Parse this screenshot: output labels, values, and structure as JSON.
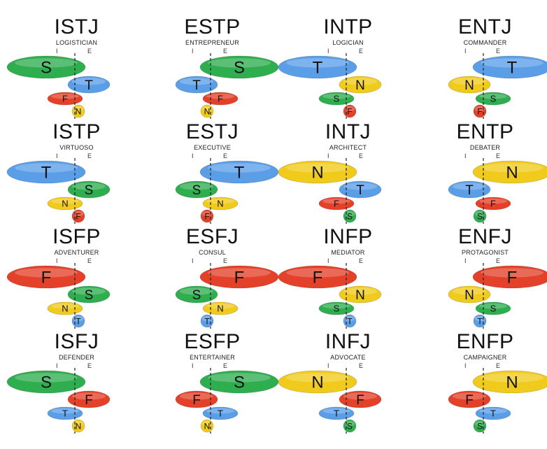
{
  "colors": {
    "T": "#5b9ee8",
    "S": "#2fae4f",
    "N": "#f1cb1b",
    "F": "#e4412a"
  },
  "axis_labels": {
    "introvert": "I",
    "extravert": "E"
  },
  "types": [
    {
      "code": "ISTJ",
      "name": "LOGISTICIAN",
      "stack": [
        "S",
        "T",
        "F",
        "N"
      ],
      "dominant_side": "I"
    },
    {
      "code": "ESTP",
      "name": "ENTREPRENEUR",
      "stack": [
        "S",
        "T",
        "F",
        "N"
      ],
      "dominant_side": "E"
    },
    {
      "code": "INTP",
      "name": "LOGICIAN",
      "stack": [
        "T",
        "N",
        "S",
        "F"
      ],
      "dominant_side": "I"
    },
    {
      "code": "ENTJ",
      "name": "COMMANDER",
      "stack": [
        "T",
        "N",
        "S",
        "F"
      ],
      "dominant_side": "E"
    },
    {
      "code": "ISTP",
      "name": "VIRTUOSO",
      "stack": [
        "T",
        "S",
        "N",
        "F"
      ],
      "dominant_side": "I"
    },
    {
      "code": "ESTJ",
      "name": "EXECUTIVE",
      "stack": [
        "T",
        "S",
        "N",
        "F"
      ],
      "dominant_side": "E"
    },
    {
      "code": "INTJ",
      "name": "ARCHITECT",
      "stack": [
        "N",
        "T",
        "F",
        "S"
      ],
      "dominant_side": "I"
    },
    {
      "code": "ENTP",
      "name": "DEBATER",
      "stack": [
        "N",
        "T",
        "F",
        "S"
      ],
      "dominant_side": "E"
    },
    {
      "code": "ISFP",
      "name": "ADVENTURER",
      "stack": [
        "F",
        "S",
        "N",
        "T"
      ],
      "dominant_side": "I"
    },
    {
      "code": "ESFJ",
      "name": "CONSUL",
      "stack": [
        "F",
        "S",
        "N",
        "T"
      ],
      "dominant_side": "E"
    },
    {
      "code": "INFP",
      "name": "MEDIATOR",
      "stack": [
        "F",
        "N",
        "S",
        "T"
      ],
      "dominant_side": "I"
    },
    {
      "code": "ENFJ",
      "name": "PROTAGONIST",
      "stack": [
        "F",
        "N",
        "S",
        "T"
      ],
      "dominant_side": "E"
    },
    {
      "code": "ISFJ",
      "name": "DEFENDER",
      "stack": [
        "S",
        "F",
        "T",
        "N"
      ],
      "dominant_side": "I"
    },
    {
      "code": "ESFP",
      "name": "ENTERTAINER",
      "stack": [
        "S",
        "F",
        "T",
        "N"
      ],
      "dominant_side": "E"
    },
    {
      "code": "INFJ",
      "name": "ADVOCATE",
      "stack": [
        "N",
        "F",
        "T",
        "S"
      ],
      "dominant_side": "I"
    },
    {
      "code": "ENFP",
      "name": "CAMPAIGNER",
      "stack": [
        "N",
        "F",
        "T",
        "S"
      ],
      "dominant_side": "E"
    }
  ]
}
